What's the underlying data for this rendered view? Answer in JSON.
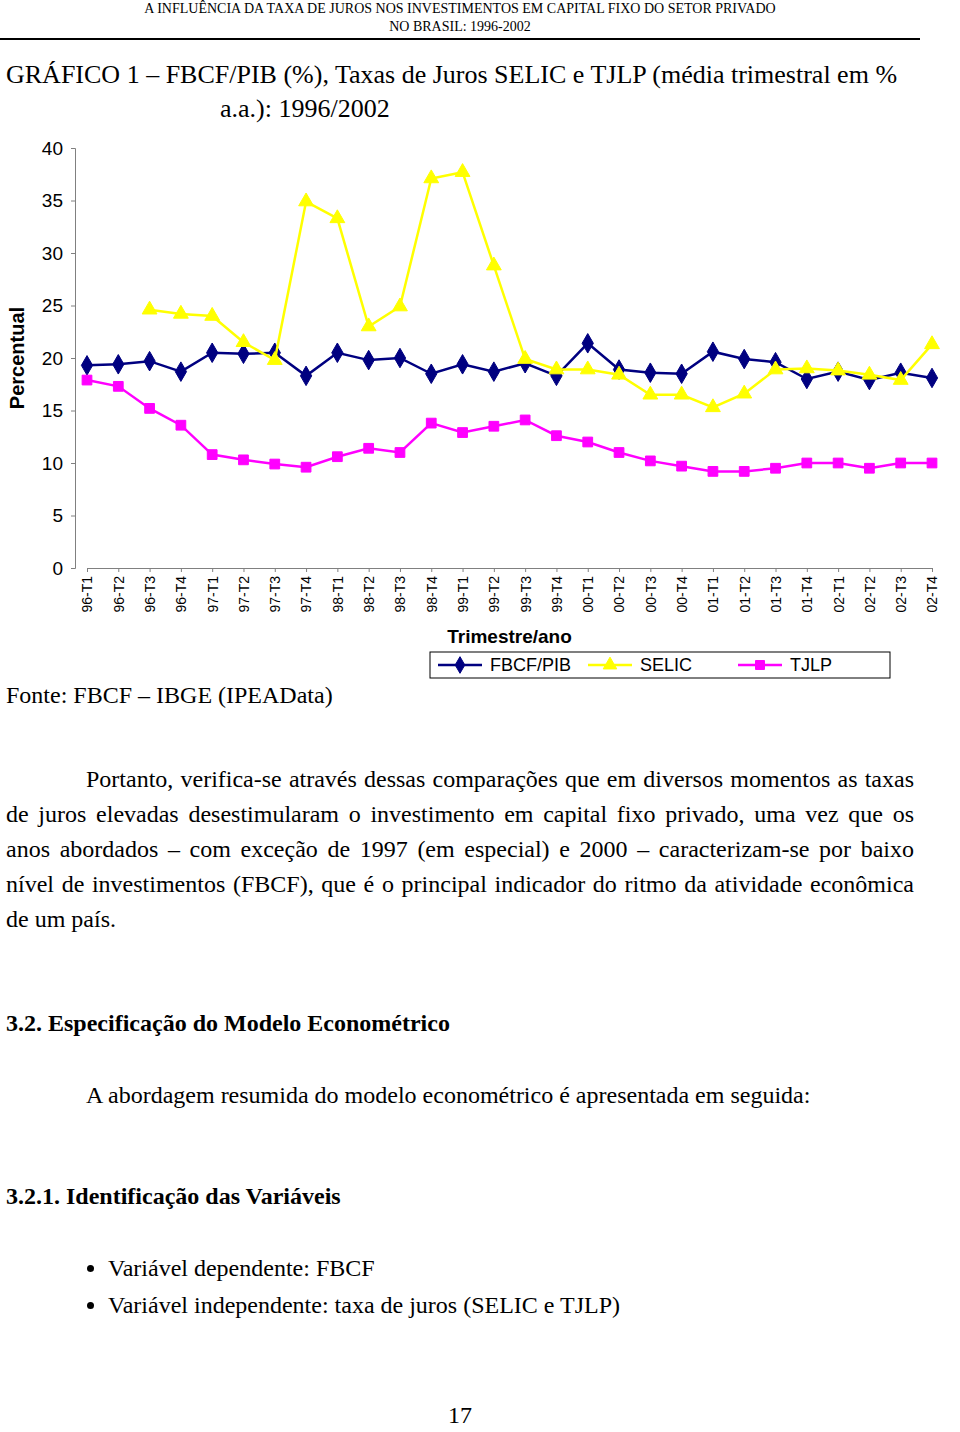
{
  "header": {
    "lines": [
      "A INFLUÊNCIA DA TAXA DE JUROS NOS INVESTIMENTOS EM CAPITAL FIXO DO SETOR PRIVADO",
      "NO BRASIL: 1996-2002"
    ]
  },
  "chart_data": {
    "type": "line",
    "title": "GRÁFICO 1 – FBCF/PIB (%), Taxas de Juros SELIC e TJLP (média trimestral em % a.a.): 1996/2002",
    "x_label": "Trimestre/ano",
    "y_label": "Percentual",
    "source": "Fonte: FBCF – IBGE (IPEAData)",
    "categories": [
      "96-T1",
      "96-T2",
      "96-T3",
      "96-T4",
      "97-T1",
      "97-T2",
      "97-T3",
      "97-T4",
      "98-T1",
      "98-T2",
      "98-T3",
      "98-T4",
      "99-T1",
      "99-T2",
      "99-T3",
      "99-T4",
      "00-T1",
      "00-T2",
      "00-T3",
      "00-T4",
      "01-T1",
      "01-T2",
      "01-T3",
      "01-T4",
      "02-T1",
      "02-T2",
      "02-T3",
      "02-T4"
    ],
    "series": [
      {
        "name": "FBCF/PIB",
        "color": "#000080",
        "marker": "diamond",
        "values": [
          19.3,
          19.4,
          19.7,
          18.7,
          20.5,
          20.4,
          20.5,
          18.3,
          20.5,
          19.8,
          20.0,
          18.5,
          19.4,
          18.7,
          19.5,
          18.3,
          21.4,
          18.9,
          18.6,
          18.5,
          20.6,
          19.9,
          19.6,
          18.0,
          18.7,
          17.9,
          18.6,
          18.1
        ]
      },
      {
        "name": "SELIC",
        "color": "#ffff00",
        "marker": "triangle",
        "values": [
          null,
          null,
          24.6,
          24.2,
          24.0,
          21.5,
          19.8,
          34.9,
          33.3,
          23.0,
          24.9,
          37.1,
          37.7,
          28.8,
          19.9,
          18.9,
          18.9,
          18.4,
          16.5,
          16.5,
          15.3,
          16.6,
          18.9,
          19.0,
          18.8,
          18.4,
          17.9,
          21.3
        ]
      },
      {
        "name": "TJLP",
        "color": "#ff00ff",
        "marker": "square",
        "values": [
          17.9,
          17.3,
          15.2,
          13.6,
          10.8,
          10.3,
          9.9,
          9.6,
          10.6,
          11.4,
          11.0,
          13.8,
          12.9,
          13.5,
          14.1,
          12.6,
          12.0,
          11.0,
          10.2,
          9.7,
          9.2,
          9.2,
          9.5,
          10.0,
          10.0,
          9.5,
          10.0,
          10.0
        ]
      }
    ],
    "ylim": [
      0,
      40
    ],
    "yticks": [
      0,
      5,
      10,
      15,
      20,
      25,
      30,
      35,
      40
    ],
    "grid": false,
    "legend": "bottom"
  },
  "body": {
    "paragraph1": "Portanto, verifica-se através dessas comparações que em diversos momentos as taxas de juros elevadas desestimularam o investimento em capital fixo privado, uma vez que os anos abordados – com exceção de 1997 (em especial) e 2000 – caracterizam-se por baixo nível de investimentos (FBCF), que é o principal indicador do ritmo da atividade econômica de um país.",
    "section_heading": "3.2. Especificação do Modelo Econométrico",
    "paragraph2": "A abordagem resumida do modelo econométrico é apresentada em seguida:",
    "subsection_heading": "3.2.1. Identificação das Variáveis",
    "bullets": [
      "Variável dependente: FBCF",
      "Variável independente: taxa de juros (SELIC e TJLP)"
    ]
  },
  "page_number": "17"
}
